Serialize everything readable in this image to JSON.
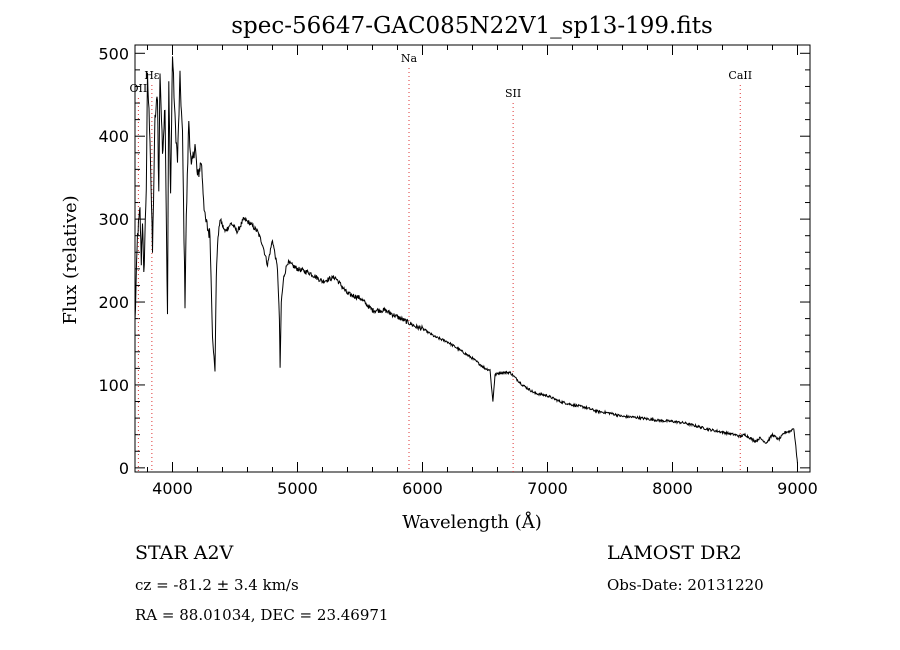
{
  "chart_data": {
    "type": "line",
    "title": "spec-56647-GAC085N22V1_sp13-199.fits",
    "xlabel": "Wavelength (Å)",
    "ylabel": "Flux (relative)",
    "xlim": [
      3700,
      9100
    ],
    "ylim": [
      -5,
      510
    ],
    "xticks": [
      4000,
      5000,
      6000,
      7000,
      8000,
      9000
    ],
    "yticks": [
      0,
      100,
      200,
      300,
      400,
      500
    ],
    "series": [
      {
        "name": "flux",
        "x": [
          3700,
          3720,
          3740,
          3750,
          3760,
          3770,
          3790,
          3800,
          3820,
          3840,
          3860,
          3880,
          3890,
          3900,
          3920,
          3940,
          3960,
          3970,
          3985,
          4000,
          4020,
          4040,
          4060,
          4080,
          4100,
          4110,
          4130,
          4150,
          4180,
          4200,
          4230,
          4260,
          4300,
          4320,
          4340,
          4350,
          4360,
          4380,
          4420,
          4470,
          4520,
          4570,
          4620,
          4680,
          4720,
          4760,
          4800,
          4840,
          4855,
          4861,
          4870,
          4890,
          4920,
          5000,
          5100,
          5200,
          5300,
          5400,
          5500,
          5600,
          5700,
          5800,
          5890,
          5950,
          6000,
          6100,
          6200,
          6300,
          6400,
          6500,
          6540,
          6563,
          6580,
          6620,
          6700,
          6800,
          6900,
          7000,
          7100,
          7200,
          7300,
          7400,
          7500,
          7600,
          7700,
          7800,
          7900,
          8000,
          8100,
          8200,
          8300,
          8400,
          8498,
          8542,
          8580,
          8662,
          8700,
          8750,
          8800,
          8850,
          8900,
          8940,
          8970,
          8990,
          9000
        ],
        "y": [
          175,
          280,
          310,
          250,
          300,
          230,
          340,
          470,
          400,
          260,
          420,
          450,
          330,
          480,
          380,
          440,
          180,
          460,
          330,
          500,
          420,
          370,
          470,
          400,
          200,
          300,
          420,
          360,
          390,
          350,
          370,
          300,
          280,
          160,
          115,
          230,
          270,
          300,
          285,
          295,
          285,
          300,
          295,
          285,
          270,
          245,
          275,
          240,
          180,
          118,
          200,
          230,
          248,
          240,
          235,
          225,
          230,
          210,
          205,
          190,
          190,
          182,
          175,
          170,
          168,
          158,
          152,
          142,
          132,
          120,
          118,
          80,
          112,
          115,
          115,
          100,
          90,
          87,
          80,
          76,
          73,
          68,
          66,
          62,
          61,
          59,
          57,
          56,
          54,
          50,
          46,
          43,
          40,
          38,
          40,
          32,
          36,
          30,
          40,
          34,
          43,
          44,
          48,
          20,
          5
        ]
      }
    ],
    "lines": [
      {
        "label": "OII",
        "x": 3727
      },
      {
        "label": "Hε",
        "x": 3835
      },
      {
        "label": "Na",
        "x": 5892
      },
      {
        "label": "SII",
        "x": 6725
      },
      {
        "label": "CaII",
        "x": 8542
      }
    ]
  },
  "info": {
    "object_line": "STAR    A2V",
    "survey": "LAMOST DR2",
    "velocity": "cz = -81.2 ± 3.4 km/s",
    "obs_date": "Obs-Date: 20131220",
    "coords": "RA =  88.01034, DEC =  23.46971"
  },
  "colors": {
    "line_marker": "#dd3333",
    "spectrum": "#000000"
  }
}
